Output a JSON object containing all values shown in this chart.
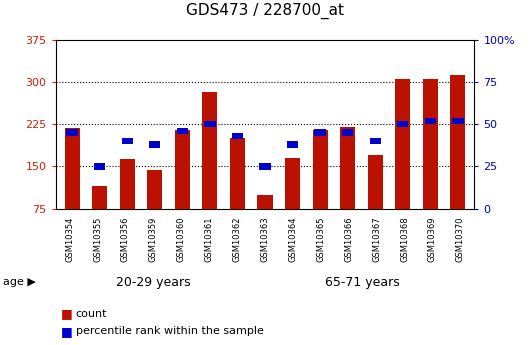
{
  "title": "GDS473 / 228700_at",
  "samples": [
    "GSM10354",
    "GSM10355",
    "GSM10356",
    "GSM10359",
    "GSM10360",
    "GSM10361",
    "GSM10362",
    "GSM10363",
    "GSM10364",
    "GSM10365",
    "GSM10366",
    "GSM10367",
    "GSM10368",
    "GSM10369",
    "GSM10370"
  ],
  "count": [
    218,
    115,
    163,
    143,
    215,
    282,
    200,
    100,
    165,
    215,
    220,
    170,
    305,
    305,
    313
  ],
  "percentile": [
    45,
    25,
    40,
    38,
    46,
    50,
    43,
    25,
    38,
    45,
    45,
    40,
    50,
    52,
    52
  ],
  "n_group1": 7,
  "n_group2": 8,
  "group1_label": "20-29 years",
  "group2_label": "65-71 years",
  "group1_color": "#aaffaa",
  "group2_color": "#44ee44",
  "bar_color": "#bb1100",
  "percentile_color": "#0000cc",
  "y_min": 75,
  "y_max": 375,
  "yticks_left": [
    75,
    150,
    225,
    300,
    375
  ],
  "yticks_right": [
    0,
    25,
    50,
    75,
    100
  ],
  "grid_lines": [
    150,
    225,
    300
  ],
  "title_fontsize": 11,
  "tick_fontsize": 8,
  "xtick_fontsize": 6,
  "legend_count": "count",
  "legend_percentile": "percentile rank within the sample",
  "tick_bg_color": "#cccccc",
  "left_tick_color": "#cc2200",
  "right_tick_color": "#0000bb"
}
